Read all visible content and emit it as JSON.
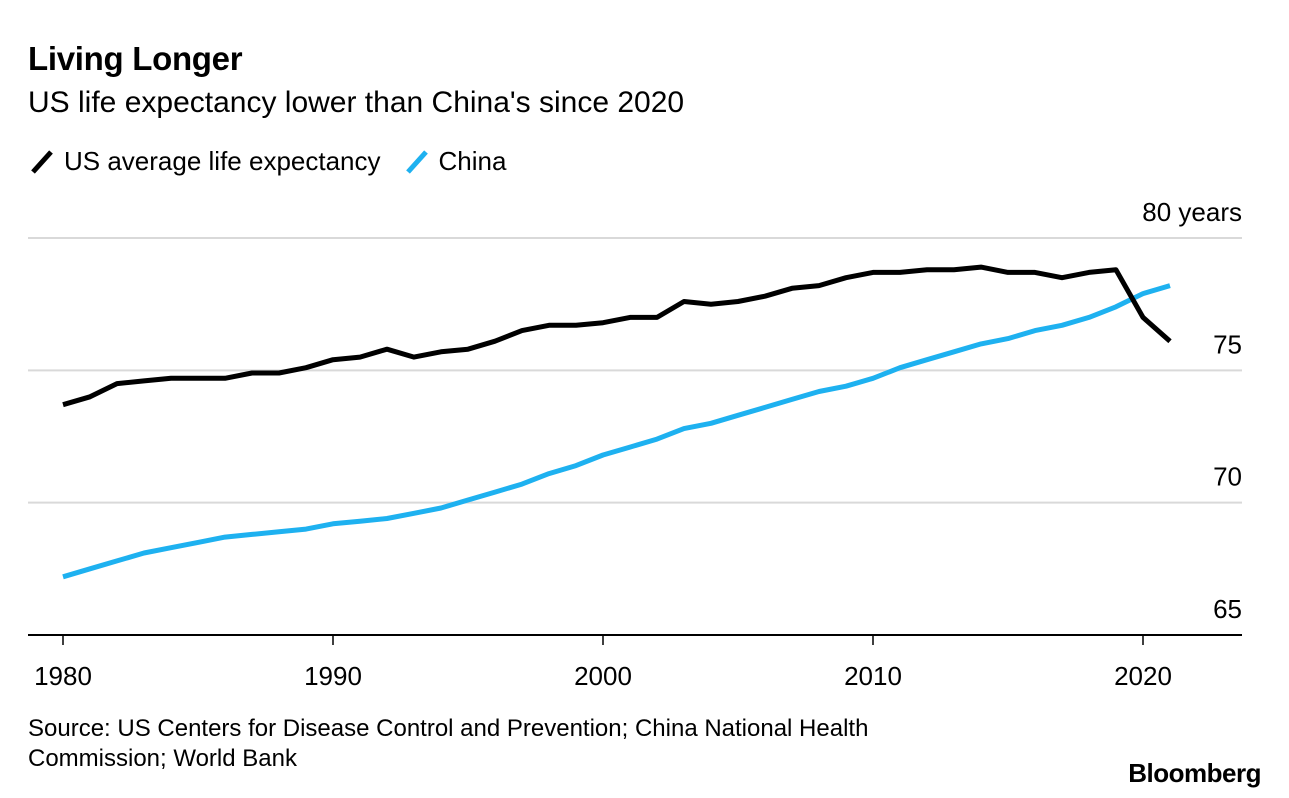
{
  "header": {
    "title": "Living Longer",
    "subtitle": "US life expectancy lower than China's since 2020"
  },
  "legend": {
    "us_label": "US average life expectancy",
    "china_label": "China"
  },
  "colors": {
    "us": "#000000",
    "china": "#1eb1f0",
    "grid": "#d9d9d9",
    "axis": "#000000"
  },
  "footer": {
    "source": "Source: US Centers for Disease Control and Prevention; China National Health Commission; World Bank",
    "brand": "Bloomberg"
  },
  "chart_data": {
    "type": "line",
    "title": "Living Longer",
    "subtitle": "US life expectancy lower than China's since 2020",
    "xlabel": "",
    "ylabel": "years",
    "xlim": [
      1980,
      2023.5
    ],
    "ylim": [
      65,
      80
    ],
    "x_ticks": [
      1980,
      1990,
      2000,
      2010,
      2020
    ],
    "y_ticks": [
      {
        "value": 80,
        "label": "80 years"
      },
      {
        "value": 75,
        "label": "75"
      },
      {
        "value": 70,
        "label": "70"
      },
      {
        "value": 65,
        "label": "65"
      }
    ],
    "grid": true,
    "legend_position": "top-left",
    "x": [
      1980,
      1981,
      1982,
      1983,
      1984,
      1985,
      1986,
      1987,
      1988,
      1989,
      1990,
      1991,
      1992,
      1993,
      1994,
      1995,
      1996,
      1997,
      1998,
      1999,
      2000,
      2001,
      2002,
      2003,
      2004,
      2005,
      2006,
      2007,
      2008,
      2009,
      2010,
      2011,
      2012,
      2013,
      2014,
      2015,
      2016,
      2017,
      2018,
      2019,
      2020,
      2021
    ],
    "series": [
      {
        "name": "US average life expectancy",
        "color": "#000000",
        "values": [
          73.7,
          74.0,
          74.5,
          74.6,
          74.7,
          74.7,
          74.7,
          74.9,
          74.9,
          75.1,
          75.4,
          75.5,
          75.8,
          75.5,
          75.7,
          75.8,
          76.1,
          76.5,
          76.7,
          76.7,
          76.8,
          77.0,
          77.0,
          77.6,
          77.5,
          77.6,
          77.8,
          78.1,
          78.2,
          78.5,
          78.7,
          78.7,
          78.8,
          78.8,
          78.9,
          78.7,
          78.7,
          78.5,
          78.7,
          78.8,
          77.0,
          76.1
        ]
      },
      {
        "name": "China",
        "color": "#1eb1f0",
        "values": [
          67.2,
          67.5,
          67.8,
          68.1,
          68.3,
          68.5,
          68.7,
          68.8,
          68.9,
          69.0,
          69.2,
          69.3,
          69.4,
          69.6,
          69.8,
          70.1,
          70.4,
          70.7,
          71.1,
          71.4,
          71.8,
          72.1,
          72.4,
          72.8,
          73.0,
          73.3,
          73.6,
          73.9,
          74.2,
          74.4,
          74.7,
          75.1,
          75.4,
          75.7,
          76.0,
          76.2,
          76.5,
          76.7,
          77.0,
          77.4,
          77.9,
          78.2
        ]
      }
    ]
  }
}
